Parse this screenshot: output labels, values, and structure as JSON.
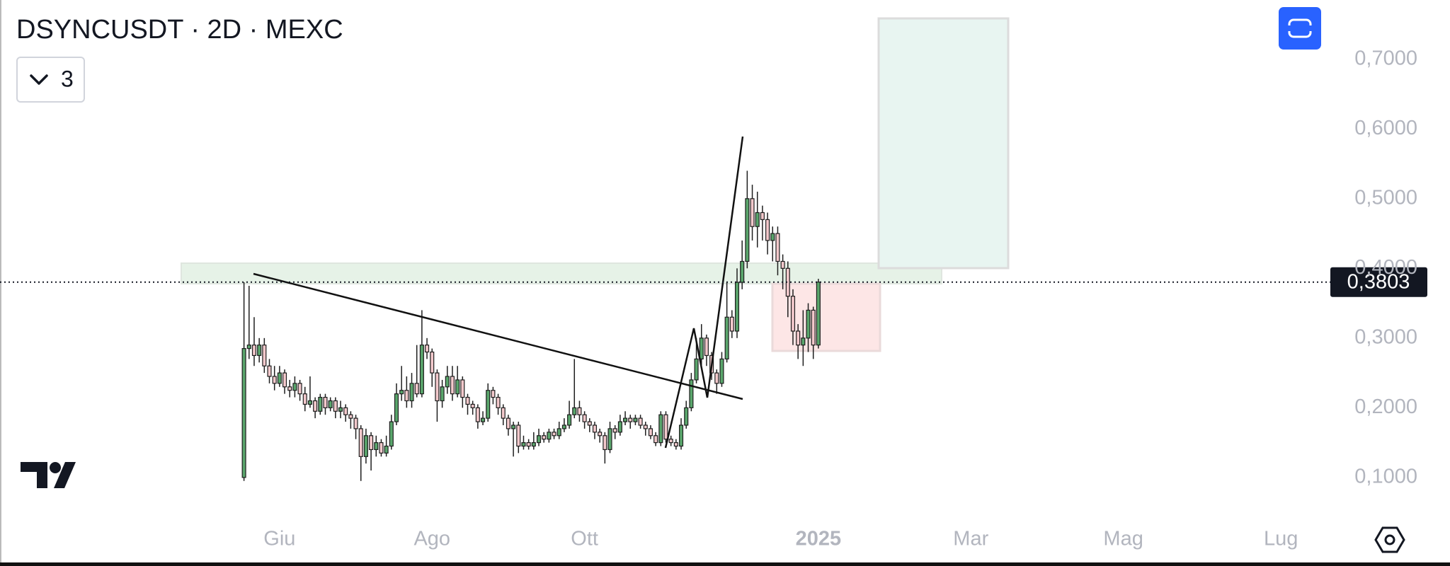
{
  "chart_data": {
    "type": "candlestick",
    "title": "DSYNCUSDT · 2D · MEXC",
    "open": [
      0.1,
      0.285,
      0.29,
      0.275,
      0.29,
      0.26,
      0.245,
      0.235,
      0.25,
      0.23,
      0.225,
      0.235,
      0.22,
      0.205,
      0.21,
      0.195,
      0.215,
      0.2,
      0.21,
      0.195,
      0.2,
      0.19,
      0.185,
      0.17,
      0.13,
      0.16,
      0.14,
      0.15,
      0.135,
      0.145,
      0.18,
      0.22,
      0.225,
      0.21,
      0.235,
      0.22,
      0.29,
      0.28,
      0.25,
      0.21,
      0.23,
      0.245,
      0.22,
      0.24,
      0.215,
      0.205,
      0.2,
      0.18,
      0.185,
      0.225,
      0.215,
      0.2,
      0.185,
      0.17,
      0.175,
      0.145,
      0.15,
      0.145,
      0.15,
      0.16,
      0.155,
      0.165,
      0.16,
      0.17,
      0.175,
      0.19,
      0.2,
      0.19,
      0.18,
      0.175,
      0.165,
      0.16,
      0.14,
      0.17,
      0.165,
      0.18,
      0.185,
      0.18,
      0.185,
      0.175,
      0.17,
      0.16,
      0.15,
      0.19,
      0.155,
      0.15,
      0.145,
      0.175,
      0.2,
      0.24,
      0.27,
      0.3,
      0.275,
      0.25,
      0.235,
      0.27,
      0.33,
      0.31,
      0.38,
      0.41,
      0.5,
      0.46,
      0.48,
      0.47,
      0.44,
      0.45,
      0.41,
      0.4,
      0.36,
      0.31,
      0.29,
      0.3,
      0.34,
      0.29
    ],
    "high": [
      0.38,
      0.375,
      0.33,
      0.3,
      0.3,
      0.27,
      0.26,
      0.26,
      0.255,
      0.24,
      0.245,
      0.24,
      0.23,
      0.245,
      0.215,
      0.22,
      0.22,
      0.215,
      0.215,
      0.21,
      0.205,
      0.195,
      0.19,
      0.175,
      0.17,
      0.165,
      0.16,
      0.155,
      0.16,
      0.19,
      0.235,
      0.26,
      0.245,
      0.25,
      0.29,
      0.34,
      0.3,
      0.285,
      0.255,
      0.24,
      0.26,
      0.26,
      0.26,
      0.245,
      0.22,
      0.21,
      0.205,
      0.195,
      0.235,
      0.23,
      0.22,
      0.205,
      0.19,
      0.18,
      0.18,
      0.16,
      0.155,
      0.165,
      0.17,
      0.165,
      0.17,
      0.17,
      0.18,
      0.185,
      0.21,
      0.27,
      0.21,
      0.195,
      0.185,
      0.18,
      0.17,
      0.165,
      0.18,
      0.175,
      0.19,
      0.195,
      0.19,
      0.19,
      0.19,
      0.18,
      0.175,
      0.165,
      0.195,
      0.195,
      0.16,
      0.155,
      0.185,
      0.21,
      0.25,
      0.3,
      0.32,
      0.305,
      0.28,
      0.255,
      0.28,
      0.38,
      0.34,
      0.4,
      0.44,
      0.54,
      0.52,
      0.51,
      0.49,
      0.48,
      0.46,
      0.46,
      0.42,
      0.41,
      0.37,
      0.32,
      0.34,
      0.35,
      0.345,
      0.385
    ],
    "low": [
      0.095,
      0.27,
      0.26,
      0.265,
      0.25,
      0.235,
      0.225,
      0.23,
      0.22,
      0.215,
      0.215,
      0.21,
      0.195,
      0.2,
      0.185,
      0.19,
      0.19,
      0.195,
      0.185,
      0.185,
      0.18,
      0.17,
      0.155,
      0.095,
      0.12,
      0.11,
      0.13,
      0.13,
      0.13,
      0.14,
      0.175,
      0.21,
      0.2,
      0.2,
      0.215,
      0.215,
      0.27,
      0.23,
      0.18,
      0.2,
      0.22,
      0.21,
      0.215,
      0.2,
      0.19,
      0.19,
      0.17,
      0.175,
      0.18,
      0.205,
      0.19,
      0.175,
      0.16,
      0.13,
      0.135,
      0.14,
      0.14,
      0.14,
      0.145,
      0.15,
      0.15,
      0.155,
      0.155,
      0.165,
      0.17,
      0.185,
      0.18,
      0.17,
      0.165,
      0.155,
      0.15,
      0.12,
      0.135,
      0.155,
      0.16,
      0.175,
      0.17,
      0.175,
      0.17,
      0.16,
      0.155,
      0.145,
      0.145,
      0.15,
      0.145,
      0.14,
      0.14,
      0.17,
      0.195,
      0.235,
      0.26,
      0.26,
      0.24,
      0.22,
      0.23,
      0.265,
      0.3,
      0.3,
      0.37,
      0.4,
      0.44,
      0.43,
      0.44,
      0.42,
      0.41,
      0.39,
      0.37,
      0.33,
      0.29,
      0.27,
      0.26,
      0.28,
      0.27,
      0.285
    ],
    "close": [
      0.285,
      0.29,
      0.275,
      0.29,
      0.26,
      0.245,
      0.235,
      0.25,
      0.23,
      0.225,
      0.235,
      0.22,
      0.205,
      0.21,
      0.195,
      0.215,
      0.2,
      0.21,
      0.195,
      0.2,
      0.19,
      0.185,
      0.17,
      0.13,
      0.16,
      0.14,
      0.15,
      0.135,
      0.145,
      0.18,
      0.22,
      0.225,
      0.21,
      0.235,
      0.22,
      0.29,
      0.28,
      0.25,
      0.21,
      0.23,
      0.245,
      0.22,
      0.24,
      0.215,
      0.205,
      0.2,
      0.18,
      0.185,
      0.225,
      0.215,
      0.2,
      0.185,
      0.17,
      0.175,
      0.145,
      0.15,
      0.145,
      0.15,
      0.16,
      0.155,
      0.165,
      0.16,
      0.17,
      0.175,
      0.19,
      0.2,
      0.19,
      0.18,
      0.175,
      0.165,
      0.16,
      0.14,
      0.17,
      0.165,
      0.18,
      0.185,
      0.18,
      0.185,
      0.175,
      0.17,
      0.16,
      0.15,
      0.19,
      0.155,
      0.15,
      0.145,
      0.175,
      0.2,
      0.24,
      0.27,
      0.3,
      0.275,
      0.25,
      0.235,
      0.27,
      0.33,
      0.31,
      0.38,
      0.41,
      0.5,
      0.46,
      0.48,
      0.47,
      0.44,
      0.45,
      0.41,
      0.4,
      0.36,
      0.31,
      0.29,
      0.3,
      0.34,
      0.29,
      0.3803
    ],
    "xlim": [
      -48,
      214
    ],
    "xticks": [
      {
        "value": 7,
        "label": "Giu"
      },
      {
        "value": 37,
        "label": "Ago"
      },
      {
        "value": 67,
        "label": "Ott"
      },
      {
        "value": 113,
        "label": "2025"
      },
      {
        "value": 143,
        "label": "Mar"
      },
      {
        "value": 173,
        "label": "Mag"
      },
      {
        "value": 204,
        "label": "Lug"
      }
    ],
    "ylim": [
      -0.027,
      0.785
    ],
    "yticks": [
      {
        "value": 0.1,
        "label": "0,1000"
      },
      {
        "value": 0.2,
        "label": "0,2000"
      },
      {
        "value": 0.3,
        "label": "0,3000"
      },
      {
        "value": 0.4,
        "label": "0,4000"
      },
      {
        "value": 0.5,
        "label": "0,5000"
      },
      {
        "value": 0.6,
        "label": "0,6000"
      },
      {
        "value": 0.7,
        "label": "0,7000"
      }
    ],
    "last_price": {
      "value": 0.3803,
      "label": "0,3803"
    },
    "up_color": "#5aa66c",
    "down_color": "#f3c9cc",
    "outline_color": "#1e1e1e"
  },
  "ui": {
    "indicator_count": 3
  }
}
